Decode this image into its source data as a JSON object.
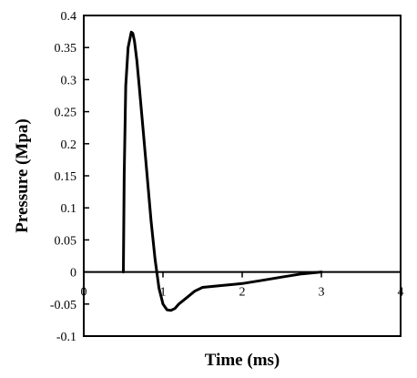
{
  "chart_data": {
    "type": "line",
    "title": "",
    "xlabel": "Time (ms)",
    "ylabel": "Pressure (Mpa)",
    "xlim": [
      0,
      4
    ],
    "ylim": [
      -0.1,
      0.4
    ],
    "xticks": [
      0,
      1,
      2,
      3,
      4
    ],
    "xtick_labels": [
      "0",
      "1",
      "2",
      "3",
      "4"
    ],
    "yticks": [
      -0.1,
      -0.05,
      0,
      0.05,
      0.1,
      0.15,
      0.2,
      0.25,
      0.3,
      0.35,
      0.4
    ],
    "ytick_labels": [
      "-0.1",
      "-0.05",
      "0",
      "0.05",
      "0.1",
      "0.15",
      "0.2",
      "0.25",
      "0.3",
      "0.35",
      "0.4"
    ],
    "grid": false,
    "legend": "none",
    "series": [
      {
        "color": "#000000",
        "x": [
          0.5,
          0.51,
          0.53,
          0.56,
          0.6,
          0.62,
          0.64,
          0.67,
          0.7,
          0.75,
          0.8,
          0.85,
          0.9,
          0.95,
          1.0,
          1.05,
          1.1,
          1.15,
          1.2,
          1.3,
          1.4,
          1.5,
          1.75,
          2.0,
          2.25,
          2.5,
          2.75,
          3.0
        ],
        "y": [
          0,
          0.15,
          0.29,
          0.35,
          0.374,
          0.372,
          0.36,
          0.33,
          0.29,
          0.22,
          0.15,
          0.08,
          0.02,
          -0.025,
          -0.05,
          -0.059,
          -0.06,
          -0.057,
          -0.05,
          -0.04,
          -0.03,
          -0.024,
          -0.021,
          -0.018,
          -0.013,
          -0.008,
          -0.003,
          0
        ]
      }
    ]
  }
}
